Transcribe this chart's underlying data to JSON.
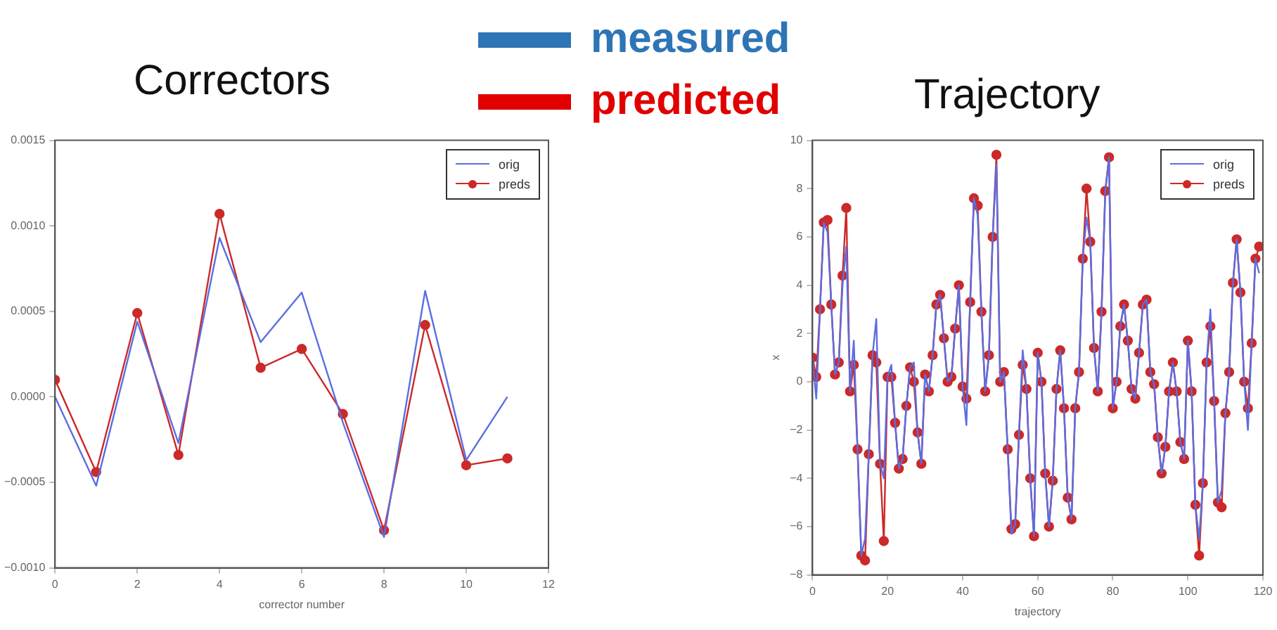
{
  "chart_data": [
    {
      "type": "line",
      "title": "Correctors",
      "xlabel": "corrector number",
      "x": [
        0,
        1,
        2,
        3,
        4,
        5,
        6,
        7,
        8,
        9,
        10,
        11
      ],
      "series": [
        {
          "name": "orig",
          "color": "#5b6ee1",
          "marker": "none",
          "values": [
            0.0,
            -0.00052,
            0.00044,
            -0.00027,
            0.00093,
            0.00032,
            0.00061,
            -0.00015,
            -0.00082,
            0.00062,
            -0.00037,
            0.0
          ]
        },
        {
          "name": "preds",
          "color": "#cc2929",
          "marker": "circle",
          "values": [
            0.0001,
            -0.00044,
            0.00049,
            -0.00034,
            0.00107,
            0.00017,
            0.00028,
            -0.0001,
            -0.00078,
            0.00042,
            -0.0004,
            -0.00036
          ]
        }
      ],
      "xlim": [
        0,
        12
      ],
      "xticks": [
        0,
        2,
        4,
        6,
        8,
        10,
        12
      ],
      "ylim": [
        -0.001,
        0.0015
      ],
      "yticks": [
        {
          "value": -0.001,
          "label": "−0.0010"
        },
        {
          "value": -0.0005,
          "label": "−0.0005"
        },
        {
          "value": 0,
          "label": "0.0000"
        },
        {
          "value": 0.0005,
          "label": "0.0005"
        },
        {
          "value": 0.001,
          "label": "0.0010"
        },
        {
          "value": 0.0015,
          "label": "0.0015"
        }
      ],
      "legend": "top right"
    },
    {
      "type": "line",
      "title": "Trajectory",
      "xlabel": "trajectory",
      "ylabel": "x",
      "x": [
        0,
        1,
        2,
        3,
        4,
        5,
        6,
        7,
        8,
        9,
        10,
        11,
        12,
        13,
        14,
        15,
        16,
        17,
        18,
        19,
        20,
        21,
        22,
        23,
        24,
        25,
        26,
        27,
        28,
        29,
        30,
        31,
        32,
        33,
        34,
        35,
        36,
        37,
        38,
        39,
        40,
        41,
        42,
        43,
        44,
        45,
        46,
        47,
        48,
        49,
        50,
        51,
        52,
        53,
        54,
        55,
        56,
        57,
        58,
        59,
        60,
        61,
        62,
        63,
        64,
        65,
        66,
        67,
        68,
        69,
        70,
        71,
        72,
        73,
        74,
        75,
        76,
        77,
        78,
        79,
        80,
        81,
        82,
        83,
        84,
        85,
        86,
        87,
        88,
        89,
        90,
        91,
        92,
        93,
        94,
        95,
        96,
        97,
        98,
        99,
        100,
        101,
        102,
        103,
        104,
        105,
        106,
        107,
        108,
        109,
        110,
        111,
        112,
        113,
        114,
        115,
        116,
        117,
        118,
        119
      ],
      "series": [
        {
          "name": "orig",
          "color": "#5b6ee1",
          "marker": "none",
          "values": [
            1.0,
            -0.7,
            3.0,
            6.6,
            6.2,
            3.2,
            0.3,
            0.8,
            4.0,
            5.6,
            -0.4,
            1.7,
            -2.8,
            -7.2,
            -6.5,
            -3.0,
            1.1,
            2.6,
            -3.4,
            -4.0,
            0.2,
            0.7,
            -1.7,
            -3.6,
            -3.2,
            -1.0,
            0.6,
            0.8,
            -2.1,
            -3.4,
            0.3,
            -0.4,
            1.1,
            3.2,
            3.6,
            1.8,
            0.0,
            0.2,
            2.2,
            4.0,
            -0.2,
            -1.8,
            3.3,
            7.6,
            6.9,
            2.9,
            -0.4,
            1.1,
            6.0,
            9.0,
            0.0,
            0.4,
            -2.8,
            -6.3,
            -5.9,
            -2.2,
            1.3,
            -0.3,
            -4.0,
            -6.4,
            1.2,
            0.0,
            -3.8,
            -6.0,
            -4.1,
            -0.3,
            1.3,
            -1.1,
            -4.8,
            -5.7,
            -1.1,
            0.4,
            5.1,
            6.8,
            5.8,
            1.4,
            -0.4,
            2.9,
            7.9,
            9.3,
            -1.1,
            0.0,
            2.3,
            3.2,
            1.7,
            -0.3,
            -0.7,
            1.2,
            3.2,
            3.4,
            0.4,
            -0.1,
            -2.3,
            -3.8,
            -2.7,
            -0.4,
            0.8,
            -0.4,
            -2.5,
            -3.2,
            1.7,
            -0.4,
            -5.1,
            -6.5,
            -4.2,
            0.8,
            3.0,
            -0.8,
            -5.0,
            -4.5,
            -1.3,
            0.4,
            4.1,
            5.9,
            3.7,
            0.0,
            -2.0,
            1.6,
            5.1,
            4.5
          ]
        },
        {
          "name": "preds",
          "color": "#cc2929",
          "marker": "circle",
          "values": [
            1.0,
            0.2,
            3.0,
            6.6,
            6.7,
            3.2,
            0.3,
            0.8,
            4.4,
            7.2,
            -0.4,
            0.7,
            -2.8,
            -7.2,
            -7.4,
            -3.0,
            1.1,
            0.8,
            -3.4,
            -6.6,
            0.2,
            0.2,
            -1.7,
            -3.6,
            -3.2,
            -1.0,
            0.6,
            0.0,
            -2.1,
            -3.4,
            0.3,
            -0.4,
            1.1,
            3.2,
            3.6,
            1.8,
            0.0,
            0.2,
            2.2,
            4.0,
            -0.2,
            -0.7,
            3.3,
            7.6,
            7.3,
            2.9,
            -0.4,
            1.1,
            6.0,
            9.4,
            0.0,
            0.4,
            -2.8,
            -6.1,
            -5.9,
            -2.2,
            0.7,
            -0.3,
            -4.0,
            -6.4,
            1.2,
            0.0,
            -3.8,
            -6.0,
            -4.1,
            -0.3,
            1.3,
            -1.1,
            -4.8,
            -5.7,
            -1.1,
            0.4,
            5.1,
            8.0,
            5.8,
            1.4,
            -0.4,
            2.9,
            7.9,
            9.3,
            -1.1,
            0.0,
            2.3,
            3.2,
            1.7,
            -0.3,
            -0.7,
            1.2,
            3.2,
            3.4,
            0.4,
            -0.1,
            -2.3,
            -3.8,
            -2.7,
            -0.4,
            0.8,
            -0.4,
            -2.5,
            -3.2,
            1.7,
            -0.4,
            -5.1,
            -7.2,
            -4.2,
            0.8,
            2.3,
            -0.8,
            -5.0,
            -5.2,
            -1.3,
            0.4,
            4.1,
            5.9,
            3.7,
            0.0,
            -1.1,
            1.6,
            5.1,
            5.6
          ]
        }
      ],
      "xlim": [
        0,
        120
      ],
      "xticks": [
        0,
        20,
        40,
        60,
        80,
        100,
        120
      ],
      "ylim": [
        -8,
        10
      ],
      "yticks": [
        {
          "value": -8,
          "label": "−8"
        },
        {
          "value": -6,
          "label": "−6"
        },
        {
          "value": -4,
          "label": "−4"
        },
        {
          "value": -2,
          "label": "−2"
        },
        0,
        2,
        4,
        6,
        8,
        10
      ],
      "legend": "top right"
    },
    {
      "type": "other",
      "annotations": [
        "measured",
        "predicted"
      ],
      "colors": [
        "#2e75b6",
        "#e00000"
      ]
    }
  ]
}
